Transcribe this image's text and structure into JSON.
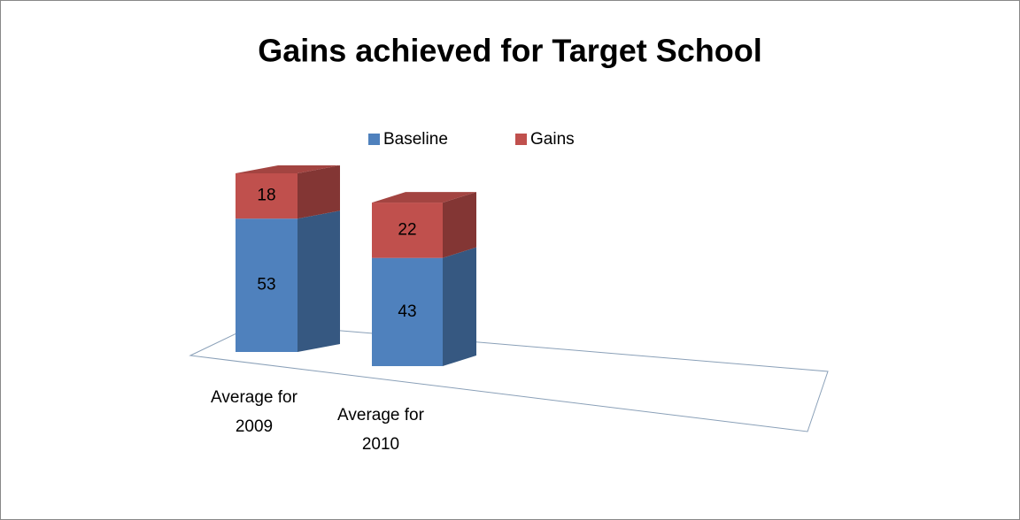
{
  "chart_data": {
    "type": "bar3d_stacked",
    "title": "Gains achieved for Target School",
    "categories": [
      "Average for 2009",
      "Average for 2010"
    ],
    "series": [
      {
        "name": "Baseline",
        "color": "#4f81bd",
        "values": [
          53,
          43
        ]
      },
      {
        "name": "Gains",
        "color": "#c0504d",
        "values": [
          18,
          22
        ]
      }
    ],
    "legend": "top"
  }
}
